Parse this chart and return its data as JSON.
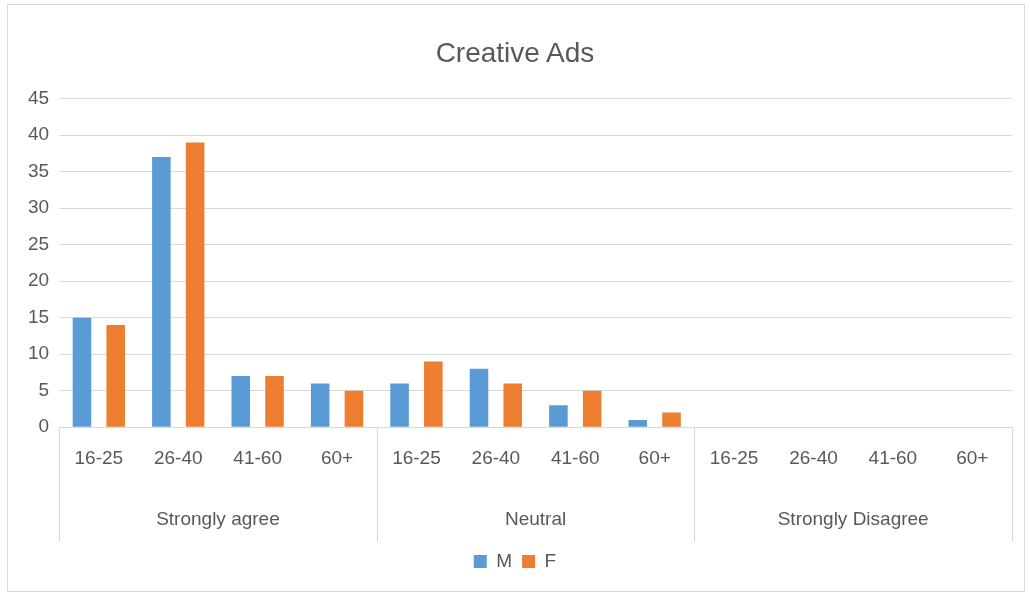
{
  "chart_data": {
    "type": "bar",
    "title": "Creative Ads",
    "categories": [
      "16-25",
      "26-40",
      "41-60",
      "60+",
      "16-25",
      "26-40",
      "41-60",
      "60+",
      "16-25",
      "26-40",
      "41-60",
      "60+"
    ],
    "series": [
      {
        "name": "M",
        "color": "#5b9bd5",
        "values": [
          15,
          37,
          7,
          6,
          6,
          8,
          3,
          1,
          0,
          0,
          0,
          0
        ]
      },
      {
        "name": "F",
        "color": "#ed7d31",
        "values": [
          14,
          39,
          7,
          5,
          9,
          6,
          5,
          2,
          0,
          0,
          0,
          0
        ]
      }
    ],
    "annotations": [
      "Strongly agree",
      "Neutral",
      "Strongly Disagree"
    ],
    "ylim": [
      0,
      45
    ],
    "yticks": [
      0,
      5,
      10,
      15,
      20,
      25,
      30,
      35,
      40,
      45
    ],
    "grid": "y",
    "legend": "bottom"
  }
}
